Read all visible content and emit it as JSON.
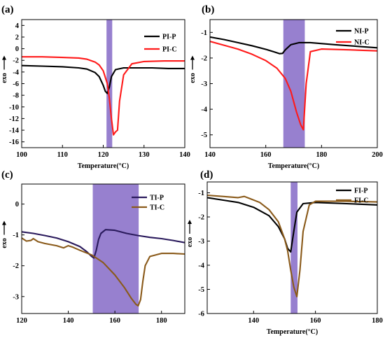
{
  "chart_data": [
    {
      "type": "line",
      "panel_label": "(a)",
      "xlabel": "Temperature(°C)",
      "ylabel": "exo",
      "xlim": [
        100,
        140
      ],
      "ylim": [
        -17,
        5
      ],
      "xticks": [
        "100",
        "110",
        "120",
        "130",
        "140"
      ],
      "yticks": [
        "4",
        "2",
        "0",
        "-2",
        "-4",
        "-6",
        "-8",
        "-10",
        "-12",
        "-14",
        "-16"
      ],
      "xtick_values": [
        100,
        110,
        120,
        130,
        140
      ],
      "ytick_values": [
        4,
        2,
        0,
        -2,
        -4,
        -6,
        -8,
        -10,
        -12,
        -14,
        -16
      ],
      "band": {
        "x0": 120.8,
        "x1": 122.2,
        "color": "#8064c4"
      },
      "legend_position": "top-right",
      "series": [
        {
          "name": "PI-P",
          "color": "#000000",
          "x": [
            100,
            105,
            110,
            114,
            116,
            118,
            119,
            120,
            120.5,
            121,
            121.5,
            122,
            123,
            125,
            128,
            132,
            136,
            140
          ],
          "y": [
            -2.9,
            -3.0,
            -3.1,
            -3.3,
            -3.5,
            -4.1,
            -4.8,
            -6.3,
            -7.3,
            -7.7,
            -6.6,
            -4.8,
            -3.6,
            -3.3,
            -3.3,
            -3.3,
            -3.4,
            -3.4
          ]
        },
        {
          "name": "PI-C",
          "color": "#ff1a1a",
          "x": [
            100,
            105,
            110,
            114,
            116,
            118,
            119,
            120,
            121,
            121.5,
            122,
            122.5,
            123,
            123.5,
            124,
            125,
            127,
            130,
            135,
            140
          ],
          "y": [
            -1.4,
            -1.4,
            -1.5,
            -1.6,
            -1.8,
            -2.3,
            -2.8,
            -3.8,
            -6.0,
            -8.5,
            -12.0,
            -14.8,
            -14.3,
            -14.0,
            -9.0,
            -4.5,
            -2.6,
            -2.2,
            -2.1,
            -2.1
          ]
        }
      ]
    },
    {
      "type": "line",
      "panel_label": "(b)",
      "xlabel": "Temperature(°C)",
      "ylabel": "exo",
      "xlim": [
        140,
        200
      ],
      "ylim": [
        -5.5,
        -0.5
      ],
      "xticks": [
        "140",
        "160",
        "180",
        "200"
      ],
      "yticks": [
        "-1",
        "-2",
        "-3",
        "-4",
        "-5"
      ],
      "xtick_values": [
        140,
        160,
        180,
        200
      ],
      "ytick_values": [
        -1,
        -2,
        -3,
        -4,
        -5
      ],
      "band": {
        "x0": 166.3,
        "x1": 174.0,
        "color": "#8064c4"
      },
      "legend_position": "top-right",
      "series": [
        {
          "name": "NI-P",
          "color": "#000000",
          "x": [
            140,
            145,
            150,
            155,
            160,
            163,
            165,
            166,
            167,
            169,
            172,
            176,
            185,
            200
          ],
          "y": [
            -1.18,
            -1.28,
            -1.4,
            -1.52,
            -1.66,
            -1.76,
            -1.83,
            -1.82,
            -1.68,
            -1.48,
            -1.4,
            -1.4,
            -1.48,
            -1.6
          ]
        },
        {
          "name": "NI-C",
          "color": "#ff1a1a",
          "x": [
            140,
            145,
            150,
            155,
            160,
            164,
            167,
            169,
            171,
            172.5,
            173.5,
            174.5,
            176,
            180,
            190,
            200
          ],
          "y": [
            -1.35,
            -1.5,
            -1.65,
            -1.85,
            -2.1,
            -2.4,
            -2.8,
            -3.3,
            -4.1,
            -4.6,
            -4.8,
            -3.0,
            -1.75,
            -1.65,
            -1.68,
            -1.72
          ]
        }
      ]
    },
    {
      "type": "line",
      "panel_label": "(c)",
      "xlabel": "",
      "ylabel": "exo",
      "xlim": [
        120,
        190
      ],
      "ylim": [
        -3.55,
        0.65
      ],
      "xticks": [
        "120",
        "140",
        "160",
        "180"
      ],
      "yticks": [
        "0",
        "-1",
        "-2",
        "-3"
      ],
      "xtick_values": [
        120,
        140,
        160,
        180
      ],
      "ytick_values": [
        0,
        -1,
        -2,
        -3
      ],
      "band": {
        "x0": 150.5,
        "x1": 170.2,
        "color": "#8064c4"
      },
      "legend_position": "top-right",
      "series": [
        {
          "name": "TI-P",
          "color": "#2a1a5c",
          "x": [
            120,
            125,
            130,
            135,
            140,
            145,
            148,
            150,
            151,
            152,
            153,
            154,
            156,
            160,
            165,
            170,
            175,
            180,
            185,
            190
          ],
          "y": [
            -0.9,
            -0.95,
            -1.02,
            -1.1,
            -1.22,
            -1.38,
            -1.55,
            -1.7,
            -1.75,
            -1.5,
            -1.15,
            -0.95,
            -0.83,
            -0.85,
            -0.95,
            -1.02,
            -1.08,
            -1.12,
            -1.18,
            -1.25
          ]
        },
        {
          "name": "TI-C",
          "color": "#8a5a1a",
          "x": [
            120,
            122,
            124,
            125,
            127,
            130,
            135,
            138,
            140,
            142,
            145,
            150,
            155,
            160,
            164,
            167,
            169,
            170,
            171,
            172,
            173,
            175,
            180,
            185,
            190
          ],
          "y": [
            -1.1,
            -1.2,
            -1.18,
            -1.12,
            -1.22,
            -1.28,
            -1.35,
            -1.42,
            -1.35,
            -1.4,
            -1.5,
            -1.65,
            -1.9,
            -2.3,
            -2.7,
            -3.05,
            -3.25,
            -3.3,
            -3.1,
            -2.5,
            -2.0,
            -1.7,
            -1.6,
            -1.6,
            -1.62
          ]
        }
      ]
    },
    {
      "type": "line",
      "panel_label": "(d)",
      "xlabel": "Temperature(°C)",
      "ylabel": "exo",
      "xlim": [
        125,
        180
      ],
      "ylim": [
        -6,
        -0.55
      ],
      "xticks": [
        "140",
        "160",
        "180"
      ],
      "yticks": [
        "-1",
        "-2",
        "-3",
        "-4",
        "-5",
        "-6"
      ],
      "xtick_values": [
        140,
        160,
        180
      ],
      "ytick_values": [
        -1,
        -2,
        -3,
        -4,
        -5,
        -6
      ],
      "band": {
        "x0": 152.0,
        "x1": 154.2,
        "color": "#8064c4"
      },
      "legend_position": "top-right",
      "series": [
        {
          "name": "FI-P",
          "color": "#000000",
          "x": [
            125,
            130,
            135,
            140,
            145,
            148,
            150,
            151,
            152,
            153,
            154,
            156,
            160,
            170,
            180
          ],
          "y": [
            -1.2,
            -1.3,
            -1.4,
            -1.6,
            -1.95,
            -2.4,
            -2.9,
            -3.3,
            -3.45,
            -2.6,
            -1.8,
            -1.45,
            -1.4,
            -1.45,
            -1.5
          ]
        },
        {
          "name": "FI-C",
          "color": "#8a5a1a",
          "x": [
            125,
            130,
            135,
            137,
            139,
            142,
            145,
            148,
            150,
            151,
            152,
            153,
            154,
            155,
            156,
            158,
            160,
            170,
            180
          ],
          "y": [
            -1.1,
            -1.15,
            -1.2,
            -1.15,
            -1.25,
            -1.4,
            -1.7,
            -2.2,
            -2.9,
            -3.4,
            -4.2,
            -4.9,
            -5.3,
            -4.2,
            -2.6,
            -1.5,
            -1.35,
            -1.35,
            -1.38
          ]
        }
      ]
    }
  ]
}
